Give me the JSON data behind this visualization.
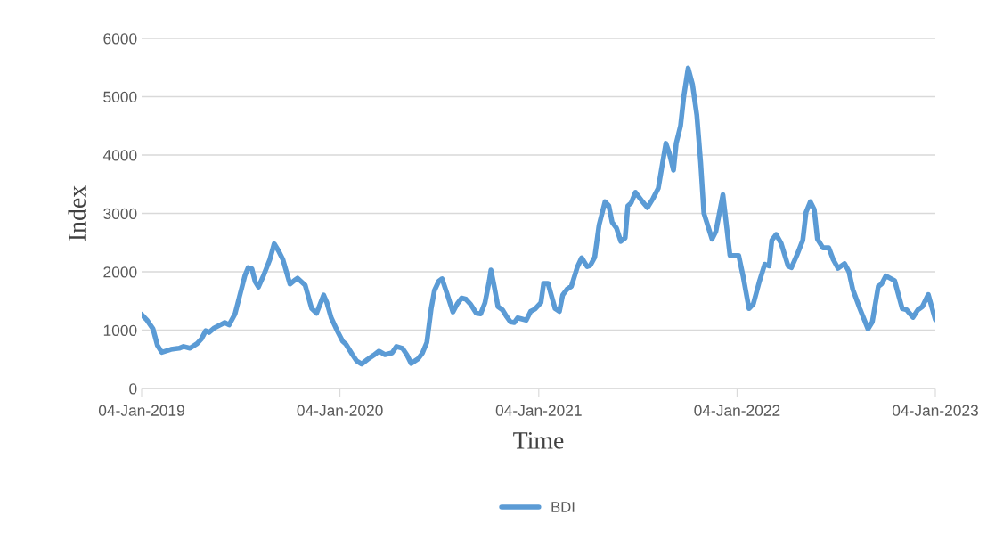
{
  "chart_data": {
    "type": "line",
    "xlabel": "Time",
    "ylabel": "Index",
    "xlim": [
      "2019-01-04",
      "2023-01-04"
    ],
    "ylim": [
      0,
      6000
    ],
    "xticks": [
      {
        "value": "2019-01-04",
        "label": "04-Jan-2019"
      },
      {
        "value": "2020-01-04",
        "label": "04-Jan-2020"
      },
      {
        "value": "2021-01-04",
        "label": "04-Jan-2021"
      },
      {
        "value": "2022-01-04",
        "label": "04-Jan-2022"
      },
      {
        "value": "2023-01-04",
        "label": "04-Jan-2023"
      }
    ],
    "yticks": [
      0,
      1000,
      2000,
      3000,
      4000,
      5000,
      6000
    ],
    "grid": "y",
    "legend": "bottom",
    "marker": "none",
    "line_style": "solid",
    "x": [
      "2019-01-04",
      "2019-01-14",
      "2019-01-25",
      "2019-02-02",
      "2019-02-10",
      "2019-02-27",
      "2019-03-14",
      "2019-03-22",
      "2019-04-03",
      "2019-04-16",
      "2019-04-24",
      "2019-05-02",
      "2019-05-08",
      "2019-05-18",
      "2019-05-29",
      "2019-06-06",
      "2019-06-14",
      "2019-06-25",
      "2019-07-03",
      "2019-07-13",
      "2019-07-19",
      "2019-07-26",
      "2019-08-01",
      "2019-08-07",
      "2019-08-17",
      "2019-08-28",
      "2019-09-05",
      "2019-09-13",
      "2019-09-21",
      "2019-10-04",
      "2019-10-12",
      "2019-10-18",
      "2019-11-01",
      "2019-11-13",
      "2019-11-22",
      "2019-12-05",
      "2019-12-11",
      "2019-12-19",
      "2019-12-30",
      "2020-01-09",
      "2020-01-15",
      "2020-01-27",
      "2020-02-04",
      "2020-02-13",
      "2020-02-24",
      "2020-03-06",
      "2020-03-16",
      "2020-03-27",
      "2020-04-09",
      "2020-04-17",
      "2020-04-28",
      "2020-05-06",
      "2020-05-14",
      "2020-05-27",
      "2020-06-04",
      "2020-06-12",
      "2020-06-20",
      "2020-06-26",
      "2020-07-04",
      "2020-07-10",
      "2020-07-20",
      "2020-07-30",
      "2020-08-07",
      "2020-08-15",
      "2020-08-23",
      "2020-08-31",
      "2020-09-11",
      "2020-09-19",
      "2020-09-27",
      "2020-10-05",
      "2020-10-08",
      "2020-10-14",
      "2020-10-21",
      "2020-10-29",
      "2020-11-06",
      "2020-11-13",
      "2020-11-20",
      "2020-11-26",
      "2020-12-04",
      "2020-12-12",
      "2020-12-20",
      "2020-12-28",
      "2021-01-08",
      "2021-01-13",
      "2021-01-21",
      "2021-02-03",
      "2021-02-11",
      "2021-02-17",
      "2021-02-25",
      "2021-03-05",
      "2021-03-16",
      "2021-03-24",
      "2021-04-03",
      "2021-04-09",
      "2021-04-17",
      "2021-04-25",
      "2021-05-06",
      "2021-05-13",
      "2021-05-19",
      "2021-05-27",
      "2021-06-04",
      "2021-06-12",
      "2021-06-17",
      "2021-06-23",
      "2021-07-01",
      "2021-07-14",
      "2021-07-23",
      "2021-08-02",
      "2021-08-12",
      "2021-08-18",
      "2021-08-26",
      "2021-09-01",
      "2021-09-09",
      "2021-09-14",
      "2021-09-22",
      "2021-09-28",
      "2021-10-06",
      "2021-10-14",
      "2021-10-22",
      "2021-10-29",
      "2021-11-04",
      "2021-11-19",
      "2021-11-26",
      "2021-12-09",
      "2021-12-22",
      "2022-01-07",
      "2022-01-15",
      "2022-01-26",
      "2022-02-03",
      "2022-02-14",
      "2022-02-24",
      "2022-03-04",
      "2022-03-09",
      "2022-03-17",
      "2022-03-26",
      "2022-04-08",
      "2022-04-14",
      "2022-04-24",
      "2022-05-05",
      "2022-05-11",
      "2022-05-19",
      "2022-05-26",
      "2022-06-01",
      "2022-06-11",
      "2022-06-22",
      "2022-06-30",
      "2022-07-09",
      "2022-07-21",
      "2022-07-29",
      "2022-08-05",
      "2022-08-18",
      "2022-09-02",
      "2022-09-10",
      "2022-09-21",
      "2022-09-27",
      "2022-10-05",
      "2022-10-21",
      "2022-11-04",
      "2022-11-12",
      "2022-11-24",
      "2022-12-03",
      "2022-12-11",
      "2022-12-22",
      "2023-01-04"
    ],
    "series": [
      {
        "name": "BDI",
        "color": "#5b9bd5",
        "values": [
          1270,
          1170,
          1020,
          740,
          620,
          670,
          690,
          720,
          690,
          770,
          850,
          990,
          960,
          1040,
          1090,
          1130,
          1090,
          1280,
          1570,
          1930,
          2070,
          2050,
          1830,
          1740,
          1950,
          2210,
          2480,
          2360,
          2210,
          1790,
          1850,
          1890,
          1770,
          1370,
          1290,
          1600,
          1470,
          1210,
          990,
          810,
          760,
          580,
          470,
          420,
          500,
          570,
          640,
          580,
          610,
          720,
          690,
          580,
          430,
          510,
          610,
          790,
          1370,
          1680,
          1840,
          1880,
          1600,
          1310,
          1450,
          1550,
          1530,
          1450,
          1290,
          1280,
          1470,
          1850,
          2030,
          1750,
          1400,
          1350,
          1230,
          1140,
          1130,
          1210,
          1190,
          1170,
          1320,
          1360,
          1470,
          1800,
          1800,
          1370,
          1320,
          1600,
          1700,
          1750,
          2080,
          2240,
          2090,
          2110,
          2250,
          2800,
          3200,
          3130,
          2850,
          2750,
          2520,
          2580,
          3130,
          3180,
          3360,
          3200,
          3100,
          3250,
          3430,
          3760,
          4200,
          4040,
          3740,
          4200,
          4500,
          5010,
          5490,
          5210,
          4680,
          3870,
          3000,
          2560,
          2690,
          3320,
          2280,
          2280,
          1930,
          1370,
          1450,
          1830,
          2130,
          2100,
          2540,
          2640,
          2490,
          2100,
          2070,
          2280,
          2540,
          3020,
          3200,
          3070,
          2560,
          2410,
          2410,
          2210,
          2060,
          2140,
          2000,
          1700,
          1370,
          1020,
          1140,
          1750,
          1790,
          1930,
          1850,
          1370,
          1350,
          1220,
          1350,
          1400,
          1610,
          1180
        ]
      }
    ]
  }
}
